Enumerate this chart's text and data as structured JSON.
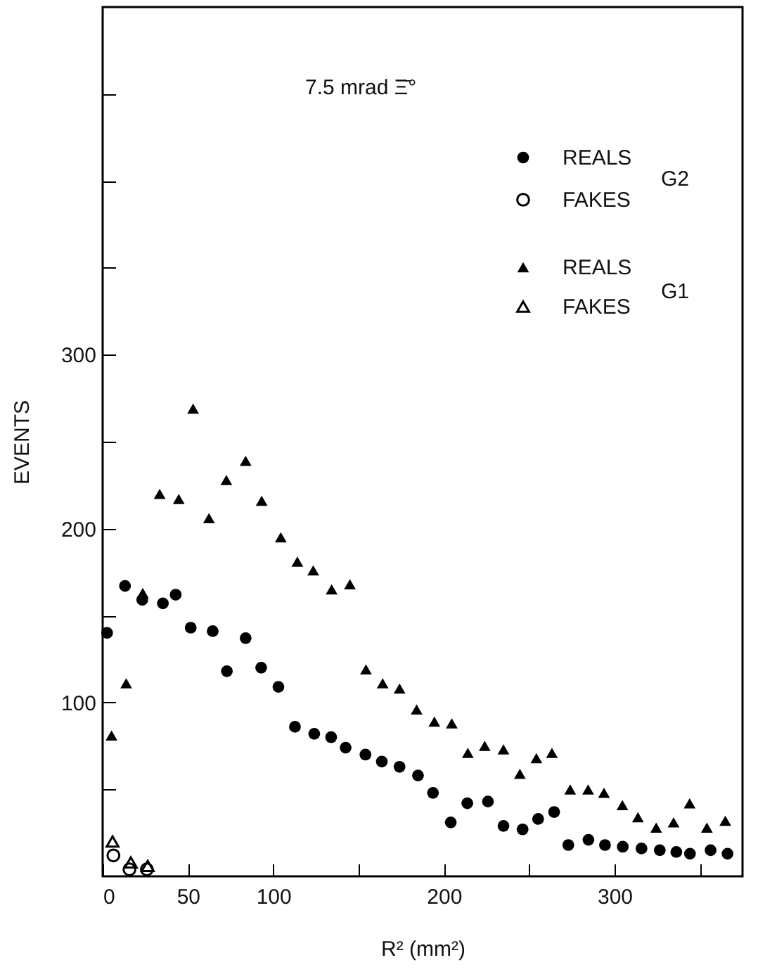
{
  "chart_data": {
    "type": "scatter",
    "xlabel": "R² (mm²)",
    "ylabel": "EVENTS",
    "annotations": [
      "7.5 mrad Ξ̄°",
      "G2",
      "G1"
    ],
    "xlim": [
      0,
      375
    ],
    "ylim": [
      0,
      500
    ],
    "xticks": [
      0,
      50,
      100,
      {
        "value": 150,
        "label": null
      },
      200,
      {
        "value": 250,
        "label": null
      },
      300,
      {
        "value": 350,
        "label": null
      }
    ],
    "yticks": [
      {
        "value": 50,
        "label": null
      },
      100,
      {
        "value": 150,
        "label": null
      },
      200,
      {
        "value": 250,
        "label": null
      },
      300,
      {
        "value": 350,
        "label": null
      },
      {
        "value": 400,
        "label": null
      },
      {
        "value": 450,
        "label": null
      }
    ],
    "grid": false,
    "legend": "top right",
    "series": [
      {
        "name": "REALS",
        "color": "#000000",
        "marker": "circle",
        "x": [
          2.6,
          13.1,
          23.2,
          35.3,
          42.8,
          51.6,
          64.5,
          72.8,
          83.8,
          92.9,
          103,
          112.7,
          124,
          133.9,
          142.4,
          154,
          163.6,
          174,
          184.8,
          193.6,
          204,
          213.7,
          225.8,
          234.9,
          246.1,
          255.2,
          264.6,
          272.9,
          284.7,
          294.4,
          304.8,
          315.8,
          326.5,
          336.2,
          344.2,
          356.3,
          366.2
        ],
        "values": [
          140,
          167,
          159,
          157,
          162,
          143,
          141,
          118,
          137,
          120,
          109,
          86,
          82,
          80,
          74,
          70,
          66,
          63,
          58,
          48,
          31,
          42,
          43,
          29,
          27,
          33,
          37,
          18,
          21,
          18,
          17,
          16,
          15,
          14,
          13,
          15,
          13
        ]
      },
      {
        "name": "FAKES",
        "color": "#000000",
        "marker": "circle",
        "x": [
          6.3,
          15.7,
          25.9
        ],
        "values": [
          12,
          4,
          4
        ]
      },
      {
        "name": "REALS",
        "color": "#000000",
        "marker": "triangle",
        "x": [
          5.2,
          13.8,
          23.5,
          33.4,
          44.6,
          53,
          62.3,
          72.5,
          83.8,
          93.2,
          104.4,
          114.1,
          123.4,
          134.2,
          144.9,
          154.3,
          164.1,
          174,
          184,
          194.4,
          204.6,
          214,
          223.9,
          234.9,
          244.5,
          254.2,
          263.3,
          274,
          284.5,
          293.8,
          304.6,
          313.7,
          324.4,
          334.6,
          344,
          354.1,
          364.9
        ],
        "values": [
          81,
          111,
          163,
          220,
          217,
          269,
          206,
          228,
          239,
          216,
          195,
          181,
          176,
          165,
          168,
          119,
          111,
          108,
          96,
          89,
          88,
          71,
          75,
          73,
          59,
          68,
          71,
          50,
          50,
          48,
          41,
          34,
          28,
          31,
          42,
          28,
          32
        ]
      },
      {
        "name": "FAKES",
        "color": "#000000",
        "marker": "triangle",
        "x": [
          5.8,
          16.5,
          26.4
        ],
        "values": [
          20,
          8,
          6
        ]
      }
    ]
  }
}
